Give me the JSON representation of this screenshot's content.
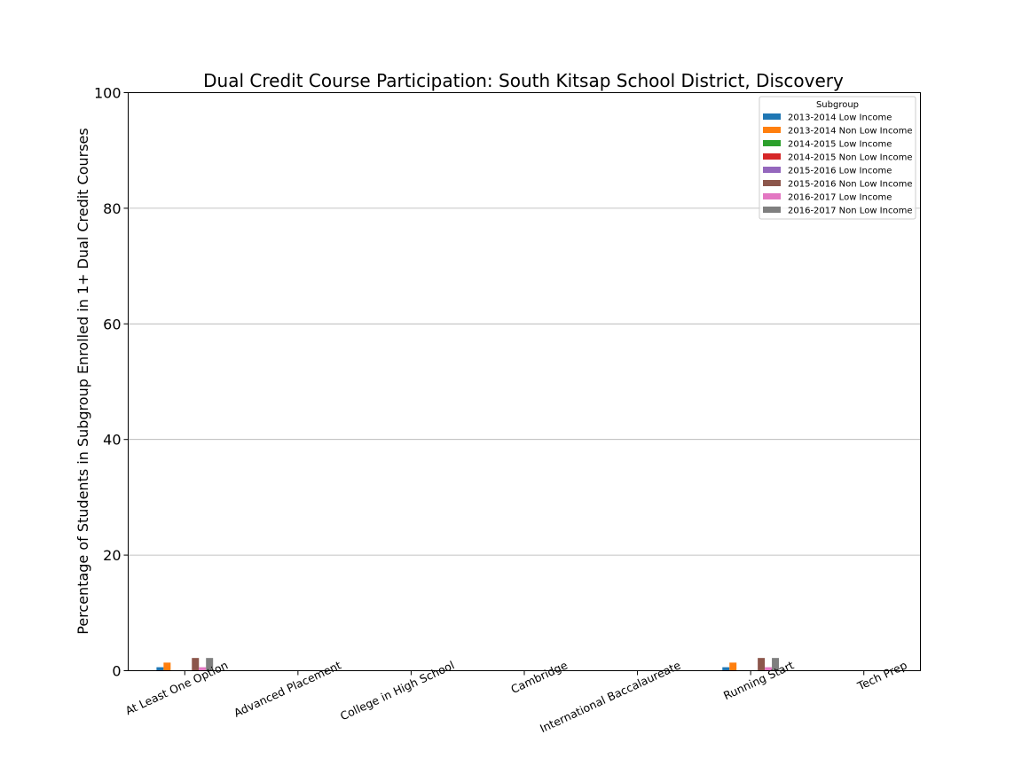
{
  "chart_data": {
    "type": "bar",
    "title": "Dual Credit Course Participation: South Kitsap School District, Discovery",
    "xlabel": "",
    "ylabel": "Percentage of Students in Subgroup Enrolled in 1+ Dual Credit Courses",
    "ylim": [
      0,
      100
    ],
    "yticks": [
      0,
      20,
      40,
      60,
      80,
      100
    ],
    "grid": "horizontal",
    "legend_title": "Subgroup",
    "legend_position": "top-right",
    "categories": [
      "At Least One Option",
      "Advanced Placement",
      "College in High School",
      "Cambridge",
      "International Baccalaureate",
      "Running Start",
      "Tech Prep"
    ],
    "series": [
      {
        "name": "2013-2014 Low Income",
        "color": "#1f77b4",
        "values": [
          0.6,
          0,
          0,
          0,
          0,
          0.6,
          0
        ]
      },
      {
        "name": "2013-2014 Non Low Income",
        "color": "#ff7f0e",
        "values": [
          1.4,
          0,
          0,
          0,
          0,
          1.4,
          0
        ]
      },
      {
        "name": "2014-2015 Low Income",
        "color": "#2ca02c",
        "values": [
          0,
          0,
          0,
          0,
          0,
          0,
          0
        ]
      },
      {
        "name": "2014-2015 Non Low Income",
        "color": "#d62728",
        "values": [
          0,
          0,
          0,
          0,
          0,
          0,
          0
        ]
      },
      {
        "name": "2015-2016 Low Income",
        "color": "#9467bd",
        "values": [
          0,
          0,
          0,
          0,
          0,
          0,
          0
        ]
      },
      {
        "name": "2015-2016 Non Low Income",
        "color": "#8c564b",
        "values": [
          2.2,
          0,
          0,
          0,
          0,
          2.2,
          0
        ]
      },
      {
        "name": "2016-2017 Low Income",
        "color": "#e377c2",
        "values": [
          0.6,
          0,
          0,
          0,
          0,
          0.6,
          0
        ]
      },
      {
        "name": "2016-2017 Non Low Income",
        "color": "#7f7f7f",
        "values": [
          2.2,
          0,
          0,
          0,
          0,
          2.2,
          0
        ]
      }
    ]
  }
}
